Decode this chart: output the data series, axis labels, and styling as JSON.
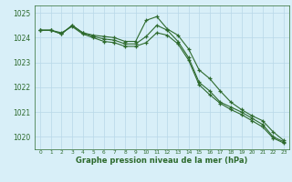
{
  "x": [
    0,
    1,
    2,
    3,
    4,
    5,
    6,
    7,
    8,
    9,
    10,
    11,
    12,
    13,
    14,
    15,
    16,
    17,
    18,
    19,
    20,
    21,
    22,
    23
  ],
  "line1": [
    1024.3,
    1024.3,
    1024.15,
    1024.5,
    1024.2,
    1024.1,
    1024.05,
    1024.0,
    1023.85,
    1023.85,
    1024.7,
    1024.85,
    1024.35,
    1024.1,
    1023.55,
    1022.7,
    1022.35,
    1021.85,
    1021.4,
    1021.1,
    1020.85,
    1020.65,
    1020.2,
    1019.85
  ],
  "line2": [
    1024.3,
    1024.3,
    1024.15,
    1024.5,
    1024.2,
    1024.05,
    1023.95,
    1023.9,
    1023.75,
    1023.75,
    1024.05,
    1024.5,
    1024.3,
    1023.85,
    1023.2,
    1022.2,
    1021.85,
    1021.4,
    1021.2,
    1021.0,
    1020.75,
    1020.5,
    1020.0,
    1019.8
  ],
  "line3": [
    1024.3,
    1024.3,
    1024.2,
    1024.45,
    1024.15,
    1024.0,
    1023.85,
    1023.8,
    1023.65,
    1023.65,
    1023.8,
    1024.2,
    1024.1,
    1023.75,
    1023.1,
    1022.1,
    1021.7,
    1021.35,
    1021.1,
    1020.9,
    1020.65,
    1020.4,
    1019.95,
    1019.75
  ],
  "bg_color": "#d8eff8",
  "grid_color": "#b8d8e8",
  "line_color": "#2d6a2d",
  "marker": "+",
  "xlabel": "Graphe pression niveau de la mer (hPa)",
  "ylim_min": 1019.5,
  "ylim_max": 1025.3,
  "xlim_min": -0.5,
  "xlim_max": 23.5,
  "xlabel_fontsize": 6.0,
  "ytick_fontsize": 5.5,
  "xtick_fontsize": 4.2
}
